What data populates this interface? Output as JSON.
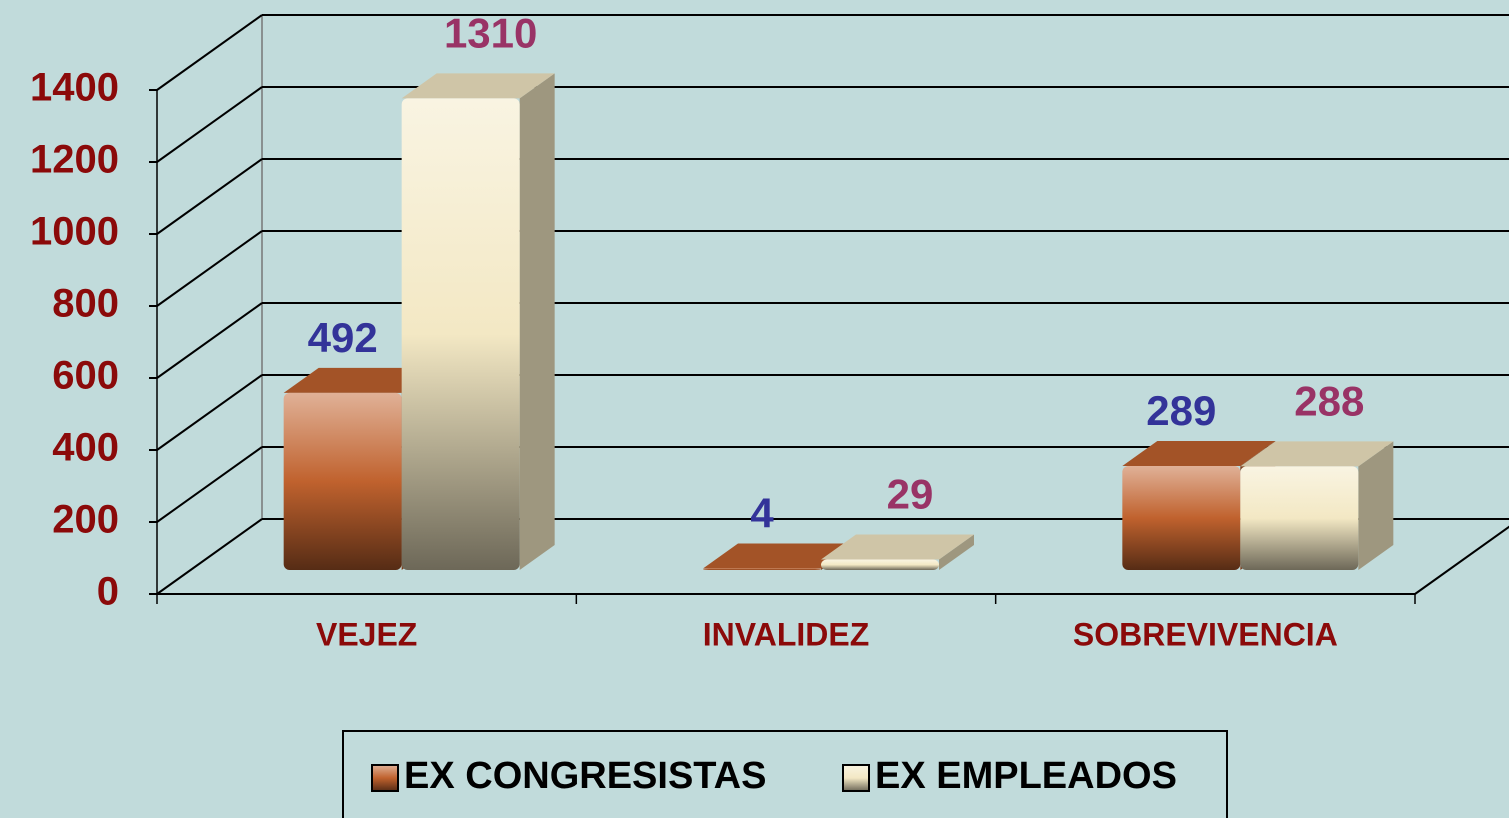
{
  "chart_data": {
    "type": "bar3d",
    "categories": [
      "VEJEZ",
      "INVALIDEZ",
      "SOBREVIVENCIA"
    ],
    "series": [
      {
        "name": "EX CONGRESISTAS",
        "color": "#c0622e",
        "label_color": "#333399",
        "values": [
          492,
          4,
          289
        ]
      },
      {
        "name": "EX EMPLEADOS",
        "color": "#f3e8c4",
        "label_color": "#993366",
        "values": [
          1310,
          29,
          288
        ]
      }
    ],
    "ylim": [
      0,
      1400
    ],
    "yticks": [
      0,
      200,
      400,
      600,
      800,
      1000,
      1200,
      1400
    ],
    "grid": true,
    "legend": "bottom"
  }
}
